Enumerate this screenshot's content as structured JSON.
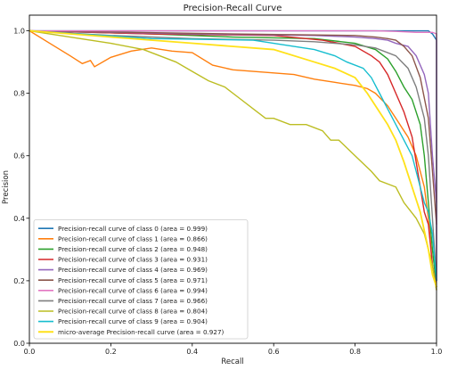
{
  "chart_data": {
    "type": "line",
    "title": "Precision-Recall Curve",
    "xlabel": "Recall",
    "ylabel": "Precision",
    "xlim": [
      0,
      1
    ],
    "ylim": [
      0,
      1.05
    ],
    "xticks": [
      "0.0",
      "0.2",
      "0.4",
      "0.6",
      "0.8",
      "1.0"
    ],
    "xtick_values": [
      0,
      0.2,
      0.4,
      0.6,
      0.8,
      1.0
    ],
    "yticks": [
      "0.0",
      "0.2",
      "0.4",
      "0.6",
      "0.8",
      "1.0"
    ],
    "ytick_values": [
      0,
      0.2,
      0.4,
      0.6,
      0.8,
      1.0
    ],
    "grid": false,
    "legend_position": "lower-left",
    "series": [
      {
        "name": "Precision-recall curve of class 0 (area = 0.999)",
        "color": "#1f77b4",
        "width": 1.4,
        "x": [
          0,
          0.5,
          0.9,
          0.98,
          0.99,
          1.0,
          1.0
        ],
        "y": [
          1.0,
          1.0,
          1.0,
          1.0,
          0.99,
          0.97,
          0.2
        ]
      },
      {
        "name": "Precision-recall curve of class 1 (area = 0.866)",
        "color": "#ff7f0e",
        "width": 1.4,
        "x": [
          0,
          0.05,
          0.1,
          0.13,
          0.15,
          0.16,
          0.2,
          0.25,
          0.3,
          0.35,
          0.4,
          0.45,
          0.5,
          0.55,
          0.6,
          0.65,
          0.7,
          0.75,
          0.8,
          0.83,
          0.85,
          0.88,
          0.9,
          0.93,
          0.95,
          0.97,
          0.98,
          0.99,
          1.0
        ],
        "y": [
          1.0,
          0.96,
          0.92,
          0.895,
          0.905,
          0.885,
          0.915,
          0.935,
          0.945,
          0.935,
          0.93,
          0.89,
          0.875,
          0.87,
          0.865,
          0.86,
          0.845,
          0.835,
          0.825,
          0.815,
          0.8,
          0.76,
          0.72,
          0.66,
          0.6,
          0.5,
          0.4,
          0.25,
          0.17
        ]
      },
      {
        "name": "Precision-recall curve of class 2 (area = 0.948)",
        "color": "#2ca02c",
        "width": 1.4,
        "x": [
          0,
          0.3,
          0.5,
          0.7,
          0.8,
          0.85,
          0.88,
          0.9,
          0.92,
          0.94,
          0.96,
          0.97,
          0.98,
          0.99,
          1.0
        ],
        "y": [
          1.0,
          0.99,
          0.98,
          0.975,
          0.96,
          0.94,
          0.91,
          0.87,
          0.82,
          0.78,
          0.7,
          0.6,
          0.45,
          0.3,
          0.18
        ]
      },
      {
        "name": "Precision-recall curve of class 3 (area = 0.931)",
        "color": "#d62728",
        "width": 1.4,
        "x": [
          0,
          0.3,
          0.6,
          0.72,
          0.8,
          0.84,
          0.86,
          0.88,
          0.9,
          0.92,
          0.94,
          0.95,
          0.96,
          0.97,
          0.98,
          0.99,
          1.0
        ],
        "y": [
          1.0,
          0.99,
          0.985,
          0.97,
          0.95,
          0.92,
          0.9,
          0.86,
          0.8,
          0.74,
          0.66,
          0.58,
          0.5,
          0.42,
          0.38,
          0.25,
          0.18
        ]
      },
      {
        "name": "Precision-recall curve of class 4 (area = 0.969)",
        "color": "#9467bd",
        "width": 1.4,
        "x": [
          0,
          0.4,
          0.7,
          0.8,
          0.85,
          0.88,
          0.9,
          0.93,
          0.95,
          0.97,
          0.98,
          0.99,
          1.0
        ],
        "y": [
          1.0,
          0.99,
          0.985,
          0.98,
          0.975,
          0.97,
          0.96,
          0.95,
          0.92,
          0.86,
          0.8,
          0.6,
          0.45
        ]
      },
      {
        "name": "Precision-recall curve of class 5 (area = 0.971)",
        "color": "#8c564b",
        "width": 1.4,
        "x": [
          0,
          0.5,
          0.8,
          0.85,
          0.88,
          0.9,
          0.92,
          0.94,
          0.96,
          0.98,
          0.99,
          1.0
        ],
        "y": [
          1.0,
          0.99,
          0.985,
          0.98,
          0.975,
          0.97,
          0.95,
          0.92,
          0.85,
          0.72,
          0.55,
          0.38
        ]
      },
      {
        "name": "Precision-recall curve of class 6 (area = 0.994)",
        "color": "#e377c2",
        "width": 1.4,
        "x": [
          0,
          0.5,
          0.85,
          0.9,
          0.95,
          0.99,
          1.0,
          1.0
        ],
        "y": [
          1.0,
          1.0,
          1.0,
          0.998,
          0.995,
          0.995,
          0.99,
          0.2
        ]
      },
      {
        "name": "Precision-recall curve of class 7 (area = 0.966)",
        "color": "#7f7f7f",
        "width": 1.4,
        "x": [
          0,
          0.2,
          0.4,
          0.6,
          0.7,
          0.8,
          0.85,
          0.9,
          0.93,
          0.95,
          0.97,
          0.98,
          0.99,
          1.0
        ],
        "y": [
          1.0,
          0.985,
          0.975,
          0.97,
          0.965,
          0.955,
          0.945,
          0.92,
          0.88,
          0.82,
          0.72,
          0.6,
          0.4,
          0.2
        ]
      },
      {
        "name": "Precision-recall curve of class 8 (area = 0.804)",
        "color": "#bcbd22",
        "width": 1.4,
        "x": [
          0,
          0.1,
          0.2,
          0.28,
          0.32,
          0.36,
          0.4,
          0.44,
          0.48,
          0.52,
          0.56,
          0.58,
          0.6,
          0.64,
          0.68,
          0.72,
          0.74,
          0.76,
          0.8,
          0.84,
          0.86,
          0.9,
          0.92,
          0.95,
          0.97,
          0.98,
          0.99,
          1.0
        ],
        "y": [
          1.0,
          0.98,
          0.96,
          0.94,
          0.92,
          0.9,
          0.87,
          0.84,
          0.82,
          0.78,
          0.74,
          0.72,
          0.72,
          0.7,
          0.7,
          0.68,
          0.65,
          0.65,
          0.6,
          0.55,
          0.52,
          0.5,
          0.45,
          0.4,
          0.35,
          0.3,
          0.25,
          0.17
        ]
      },
      {
        "name": "Precision-recall curve of class 9 (area = 0.904)",
        "color": "#17becf",
        "width": 1.4,
        "x": [
          0,
          0.3,
          0.55,
          0.7,
          0.75,
          0.78,
          0.82,
          0.84,
          0.86,
          0.88,
          0.9,
          0.92,
          0.94,
          0.95,
          0.96,
          0.97,
          0.98,
          0.99,
          1.0
        ],
        "y": [
          1.0,
          0.975,
          0.97,
          0.94,
          0.92,
          0.9,
          0.88,
          0.85,
          0.8,
          0.75,
          0.7,
          0.65,
          0.6,
          0.55,
          0.5,
          0.45,
          0.42,
          0.35,
          0.2
        ]
      },
      {
        "name": "micro-average Precision-recall curve (area = 0.927)",
        "color": "#ffe119",
        "width": 1.8,
        "x": [
          0,
          0.2,
          0.4,
          0.6,
          0.7,
          0.75,
          0.8,
          0.83,
          0.86,
          0.88,
          0.9,
          0.92,
          0.94,
          0.96,
          0.98,
          0.99,
          1.0
        ],
        "y": [
          1.0,
          0.98,
          0.96,
          0.94,
          0.9,
          0.88,
          0.85,
          0.8,
          0.74,
          0.7,
          0.65,
          0.58,
          0.5,
          0.42,
          0.3,
          0.22,
          0.18
        ]
      }
    ]
  }
}
